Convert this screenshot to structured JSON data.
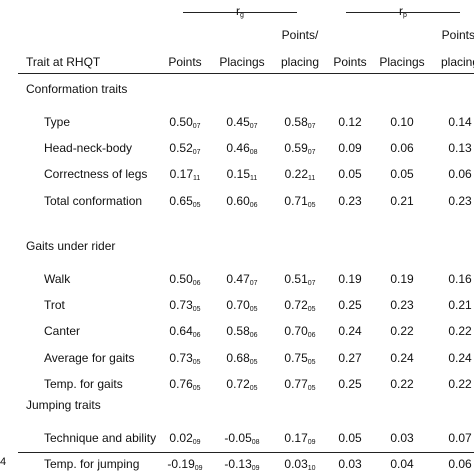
{
  "table": {
    "group_headers": {
      "rg": "r",
      "rg_sub": "g",
      "rp": "r",
      "rp_sub": "p"
    },
    "columns": [
      "Trait at RHQT",
      "Points",
      "Placings",
      "Points/",
      "placing",
      "Points",
      "Placings",
      "Points/",
      "placing"
    ],
    "sections": [
      {
        "title": "Conformation traits",
        "rows": [
          {
            "label": "Type",
            "g1": "0.50",
            "g1s": "07",
            "g2": "0.45",
            "g2s": "07",
            "g3": "0.58",
            "g3s": "07",
            "p1": "0.12",
            "p2": "0.10",
            "p3": "0.14"
          },
          {
            "label": "Head-neck-body",
            "g1": "0.52",
            "g1s": "07",
            "g2": "0.46",
            "g2s": "08",
            "g3": "0.59",
            "g3s": "07",
            "p1": "0.09",
            "p2": "0.06",
            "p3": "0.13"
          },
          {
            "label": "Correctness of legs",
            "g1": "0.17",
            "g1s": "11",
            "g2": "0.15",
            "g2s": "11",
            "g3": "0.22",
            "g3s": "11",
            "p1": "0.05",
            "p2": "0.05",
            "p3": "0.06"
          },
          {
            "label": "Total conformation",
            "g1": "0.65",
            "g1s": "05",
            "g2": "0.60",
            "g2s": "06",
            "g3": "0.71",
            "g3s": "05",
            "p1": "0.23",
            "p2": "0.21",
            "p3": "0.23"
          }
        ]
      },
      {
        "title": "Gaits under rider",
        "rows": [
          {
            "label": "Walk",
            "g1": "0.50",
            "g1s": "06",
            "g2": "0.47",
            "g2s": "07",
            "g3": "0.51",
            "g3s": "07",
            "p1": "0.19",
            "p2": "0.19",
            "p3": "0.16"
          },
          {
            "label": "Trot",
            "g1": "0.73",
            "g1s": "05",
            "g2": "0.70",
            "g2s": "05",
            "g3": "0.72",
            "g3s": "05",
            "p1": "0.25",
            "p2": "0.23",
            "p3": "0.21"
          },
          {
            "label": "Canter",
            "g1": "0.64",
            "g1s": "06",
            "g2": "0.58",
            "g2s": "06",
            "g3": "0.70",
            "g3s": "06",
            "p1": "0.24",
            "p2": "0.22",
            "p3": "0.22"
          },
          {
            "label": "Average for gaits",
            "g1": "0.73",
            "g1s": "05",
            "g2": "0.68",
            "g2s": "05",
            "g3": "0.75",
            "g3s": "05",
            "p1": "0.27",
            "p2": "0.24",
            "p3": "0.24"
          },
          {
            "label": "Temp. for gaits",
            "g1": "0.76",
            "g1s": "05",
            "g2": "0.72",
            "g2s": "05",
            "g3": "0.77",
            "g3s": "05",
            "p1": "0.25",
            "p2": "0.22",
            "p3": "0.22"
          }
        ]
      },
      {
        "title": "Jumping traits",
        "rows": [
          {
            "label": "Technique and ability",
            "g1": "0.02",
            "g1s": "09",
            "g2": "-0.05",
            "g2s": "08",
            "g3": "0.17",
            "g3s": "09",
            "p1": "0.05",
            "p2": "0.03",
            "p3": "0.07"
          },
          {
            "label": "Temp. for jumping",
            "g1": "-0.19",
            "g1s": "09",
            "g2": "-0.13",
            "g2s": "09",
            "g3": "0.03",
            "g3s": "10",
            "p1": "0.03",
            "p2": "0.04",
            "p3": "0.06"
          }
        ]
      }
    ],
    "page_number": "4"
  }
}
